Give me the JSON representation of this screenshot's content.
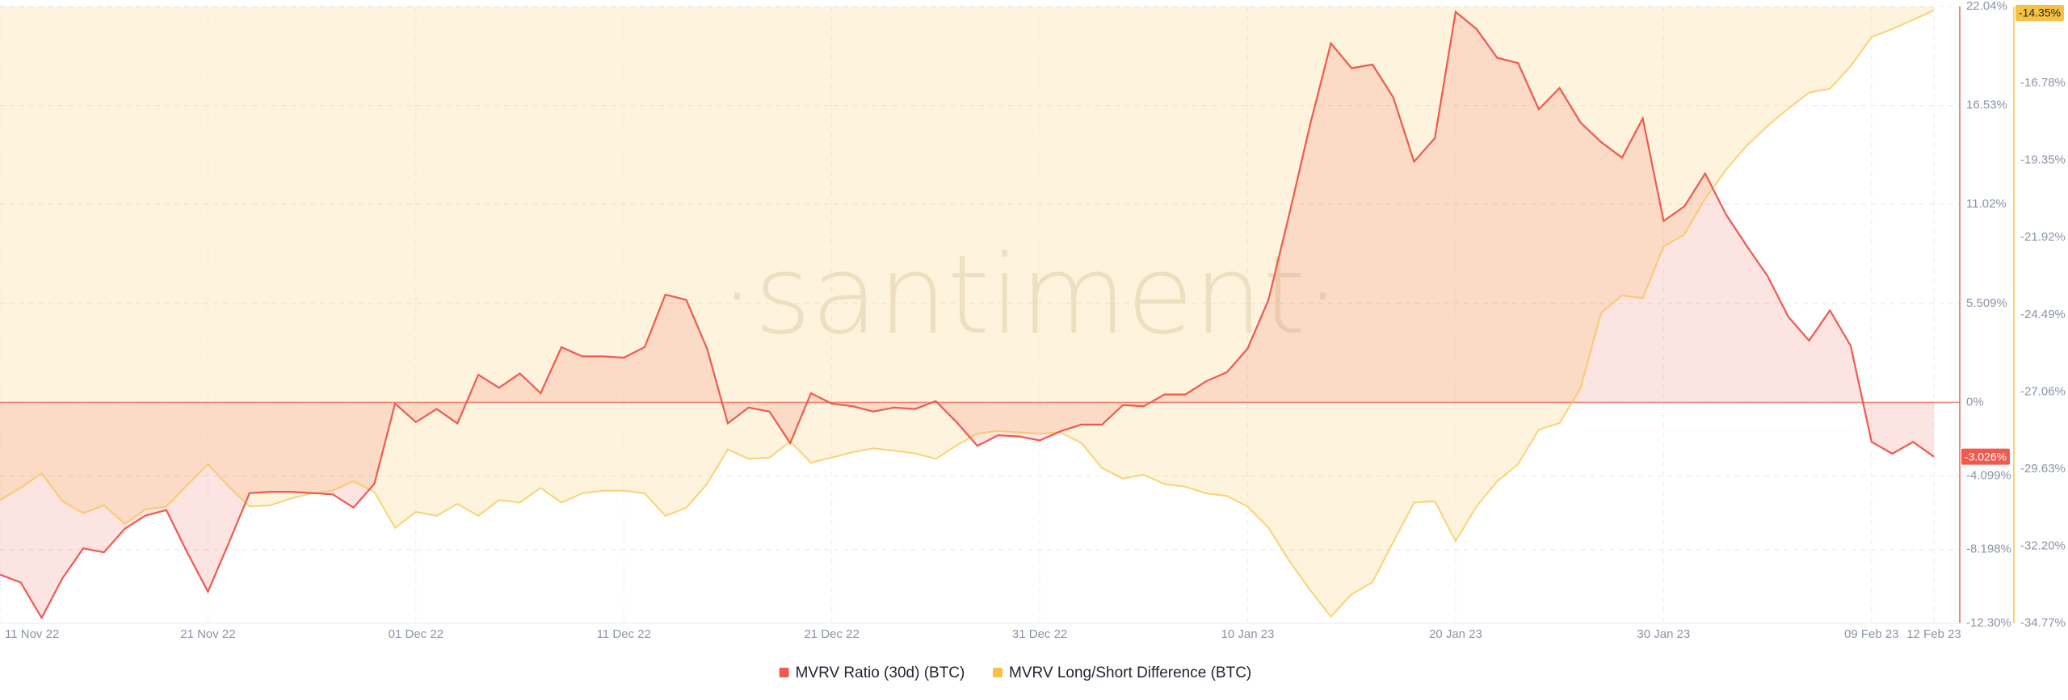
{
  "chart_data": {
    "type": "line",
    "watermark": "·santiment·",
    "categories": [
      "11 Nov 22",
      null,
      null,
      null,
      null,
      null,
      null,
      null,
      null,
      null,
      "21 Nov 22",
      null,
      null,
      null,
      null,
      null,
      null,
      null,
      null,
      null,
      "01 Dec 22",
      null,
      null,
      null,
      null,
      null,
      null,
      null,
      null,
      null,
      "11 Dec 22",
      null,
      null,
      null,
      null,
      null,
      null,
      null,
      null,
      null,
      "21 Dec 22",
      null,
      null,
      null,
      null,
      null,
      null,
      null,
      null,
      null,
      "31 Dec 22",
      null,
      null,
      null,
      null,
      null,
      null,
      null,
      null,
      null,
      "10 Jan 23",
      null,
      null,
      null,
      null,
      null,
      null,
      null,
      null,
      null,
      "20 Jan 23",
      null,
      null,
      null,
      null,
      null,
      null,
      null,
      null,
      null,
      "30 Jan 23",
      null,
      null,
      null,
      null,
      null,
      null,
      null,
      null,
      null,
      "09 Feb 23",
      null,
      null,
      "12 Feb 23"
    ],
    "series": [
      {
        "name": "MVRV Ratio (30d) (BTC)",
        "color": "#ef5a50",
        "values": [
          -9.59,
          -10.03,
          -12.0,
          -9.8,
          -8.13,
          -8.35,
          -7.03,
          -6.3,
          -6.0,
          -8.35,
          -10.54,
          -7.83,
          -5.05,
          -4.98,
          -4.98,
          -5.05,
          -5.12,
          -5.86,
          -4.54,
          -0.07,
          -1.1,
          -0.37,
          -1.17,
          1.54,
          0.81,
          1.61,
          0.51,
          3.07,
          2.56,
          2.56,
          2.49,
          3.07,
          6.0,
          5.71,
          3.0,
          -1.17,
          -0.29,
          -0.51,
          -2.27,
          0.51,
          -0.07,
          -0.22,
          -0.51,
          -0.29,
          -0.37,
          0.07,
          -1.1,
          -2.42,
          -1.83,
          -1.9,
          -2.12,
          -1.61,
          -1.24,
          -1.24,
          -0.15,
          -0.22,
          0.44,
          0.44,
          1.17,
          1.68,
          3.0,
          5.71,
          10.47,
          15.45,
          19.99,
          18.6,
          18.81,
          16.98,
          13.4,
          14.71,
          21.74,
          20.79,
          19.18,
          18.89,
          16.32,
          17.5,
          15.59,
          14.49,
          13.62,
          15.81,
          10.1,
          10.91,
          12.74,
          10.47,
          8.71,
          7.03,
          4.76,
          3.44,
          5.12,
          3.15,
          -2.2,
          -2.86,
          -2.2,
          -3.026
        ],
        "value_labels": [
          null,
          null,
          null,
          null,
          null,
          null,
          null,
          null,
          null,
          null,
          null,
          null,
          null,
          null,
          null,
          null,
          null,
          null,
          null,
          null,
          null,
          null,
          null,
          null,
          null,
          null,
          null,
          null,
          null,
          null,
          null,
          null,
          null,
          null,
          null,
          null,
          null,
          null,
          null,
          null,
          null,
          null,
          null,
          null,
          null,
          null,
          null,
          null,
          null,
          null,
          null,
          null,
          null,
          null,
          null,
          null,
          null,
          null,
          null,
          null,
          null,
          null,
          null,
          null,
          null,
          null,
          null,
          null,
          null,
          null,
          null,
          null,
          null,
          null,
          null,
          null,
          null,
          null,
          null,
          null,
          null,
          null,
          null,
          null,
          null,
          null,
          null,
          null,
          null,
          null,
          null,
          null,
          null,
          "-3.026%"
        ]
      },
      {
        "name": "MVRV Long/Short Difference (BTC)",
        "color": "#f7c244",
        "axis": "y2",
        "values": [
          -30.66,
          -30.26,
          -29.77,
          -30.7,
          -31.1,
          -30.84,
          -31.46,
          -30.97,
          -30.88,
          -30.17,
          -29.47,
          -30.22,
          -30.88,
          -30.84,
          -30.61,
          -30.44,
          -30.35,
          -30.04,
          -30.39,
          -31.59,
          -31.06,
          -31.19,
          -30.79,
          -31.19,
          -30.66,
          -30.75,
          -30.26,
          -30.75,
          -30.44,
          -30.35,
          -30.35,
          -30.44,
          -31.19,
          -30.92,
          -30.13,
          -28.98,
          -29.29,
          -29.25,
          -28.71,
          -29.42,
          -29.25,
          -29.07,
          -28.94,
          -29.02,
          -29.11,
          -29.29,
          -28.85,
          -28.45,
          -28.36,
          -28.41,
          -28.45,
          -28.41,
          -28.76,
          -29.6,
          -29.95,
          -29.82,
          -30.13,
          -30.22,
          -30.44,
          -30.53,
          -30.88,
          -31.59,
          -32.69,
          -33.66,
          -34.55,
          -33.8,
          -33.4,
          -32.07,
          -30.75,
          -30.7,
          -32.03,
          -30.88,
          -30.04,
          -29.47,
          -28.32,
          -28.1,
          -26.95,
          -24.43,
          -23.85,
          -23.94,
          -22.22,
          -21.82,
          -20.63,
          -19.66,
          -18.86,
          -18.2,
          -17.62,
          -17.09,
          -16.96,
          -16.21,
          -15.24,
          -14.97,
          -14.66,
          -14.35
        ],
        "value_labels": [
          null,
          null,
          null,
          null,
          null,
          null,
          null,
          null,
          null,
          null,
          null,
          null,
          null,
          null,
          null,
          null,
          null,
          null,
          null,
          null,
          null,
          null,
          null,
          null,
          null,
          null,
          null,
          null,
          null,
          null,
          null,
          null,
          null,
          null,
          null,
          null,
          null,
          null,
          null,
          null,
          null,
          null,
          null,
          null,
          null,
          null,
          null,
          null,
          null,
          null,
          null,
          null,
          null,
          null,
          null,
          null,
          null,
          null,
          null,
          null,
          null,
          null,
          null,
          null,
          null,
          null,
          null,
          null,
          null,
          null,
          null,
          null,
          null,
          null,
          null,
          null,
          null,
          null,
          null,
          null,
          null,
          null,
          null,
          null,
          null,
          null,
          null,
          null,
          null,
          null,
          null,
          null,
          null,
          "-14.35%"
        ]
      }
    ],
    "ylim": [
      -12.3,
      22.04
    ],
    "yticks": [
      {
        "value": 22.04,
        "label": "22.04%"
      },
      {
        "value": 16.53,
        "label": "16.53%"
      },
      {
        "value": 11.02,
        "label": "11.02%"
      },
      {
        "value": 5.509,
        "label": "5.509%"
      },
      {
        "value": 0,
        "label": "0%"
      },
      {
        "value": -4.099,
        "label": "-4.099%"
      },
      {
        "value": -8.198,
        "label": "-8.198%"
      },
      {
        "value": -12.3,
        "label": "-12.30%"
      }
    ],
    "y2lim": [
      -34.77,
      -14.22
    ],
    "y2ticks": [
      {
        "value": -16.78,
        "label": "-16.78%"
      },
      {
        "value": -19.35,
        "label": "-19.35%"
      },
      {
        "value": -21.92,
        "label": "-21.92%"
      },
      {
        "value": -24.49,
        "label": "-24.49%"
      },
      {
        "value": -27.06,
        "label": "-27.06%"
      },
      {
        "value": -29.63,
        "label": "-29.63%"
      },
      {
        "value": -32.2,
        "label": "-32.20%"
      },
      {
        "value": -34.77,
        "label": "-34.77%"
      }
    ],
    "grid": true,
    "legend": "bottom"
  }
}
